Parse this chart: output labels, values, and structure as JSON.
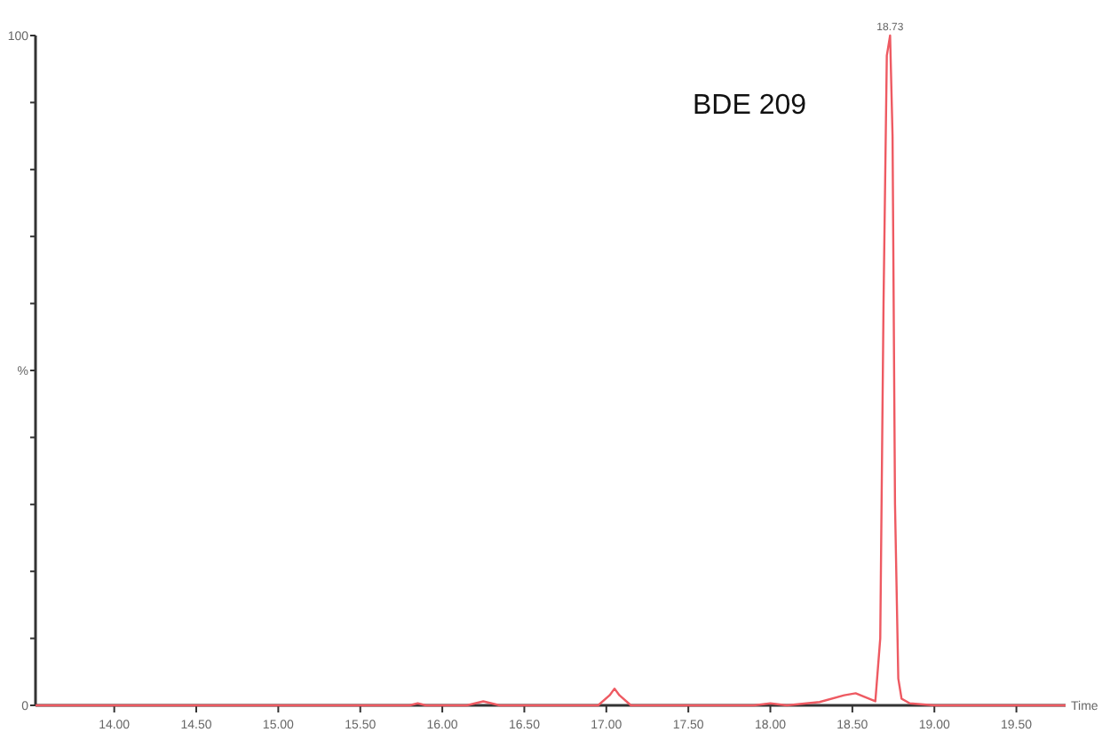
{
  "chart_data": {
    "type": "line",
    "xlabel": "Time",
    "annotations": [
      {
        "text": "18.73",
        "x": 18.73,
        "y": 100
      },
      "BDE 209"
    ],
    "xlim": [
      13.52,
      19.8
    ],
    "ylim": [
      0,
      100
    ],
    "xticks": [
      {
        "value": 14,
        "label": "14.00"
      },
      {
        "value": 14.5,
        "label": "14.50"
      },
      {
        "value": 15,
        "label": "15.00"
      },
      {
        "value": 15.5,
        "label": "15.50"
      },
      {
        "value": 16,
        "label": "16.00"
      },
      {
        "value": 16.5,
        "label": "16.50"
      },
      {
        "value": 17,
        "label": "17.00"
      },
      {
        "value": 17.5,
        "label": "17.50"
      },
      {
        "value": 18,
        "label": "18.00"
      },
      {
        "value": 18.5,
        "label": "18.50"
      },
      {
        "value": 19,
        "label": "19.00"
      },
      {
        "value": 19.5,
        "label": "19.50"
      }
    ],
    "yticks": [
      0,
      {
        "value": 10,
        "label": null
      },
      {
        "value": 20,
        "label": null
      },
      {
        "value": 30,
        "label": null
      },
      {
        "value": 40,
        "label": null
      },
      {
        "value": 50,
        "label": "%"
      },
      {
        "value": 60,
        "label": null
      },
      {
        "value": 70,
        "label": null
      },
      {
        "value": 80,
        "label": null
      },
      {
        "value": 90,
        "label": null
      },
      100
    ],
    "grid": false,
    "marker": "none",
    "line_style": "solid",
    "series": [
      {
        "color": "#ee5a62",
        "x": [
          13.52,
          15.8,
          15.85,
          15.9,
          16.15,
          16.25,
          16.35,
          16.95,
          17.02,
          17.05,
          17.08,
          17.15,
          17.9,
          18.0,
          18.1,
          18.3,
          18.45,
          18.52,
          18.58,
          18.64,
          18.67,
          18.69,
          18.71,
          18.73,
          18.745,
          18.76,
          18.78,
          18.8,
          18.85,
          19.0,
          19.8
        ],
        "values": [
          0,
          0,
          0.3,
          0,
          0,
          0.6,
          0,
          0,
          1.5,
          2.5,
          1.5,
          0,
          0,
          0.3,
          0,
          0.5,
          1.5,
          1.8,
          1.2,
          0.6,
          10,
          60,
          97,
          100,
          85,
          30,
          4,
          1,
          0.3,
          0,
          0
        ]
      }
    ]
  }
}
